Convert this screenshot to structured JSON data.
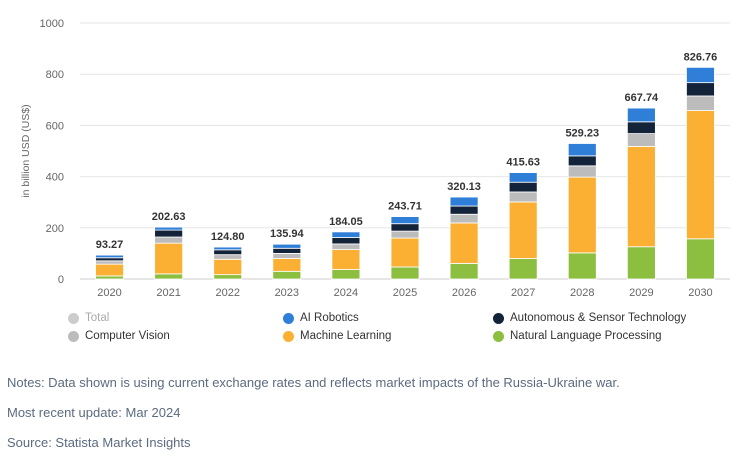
{
  "chart_data": {
    "type": "bar",
    "stacked": true,
    "categories": [
      "2020",
      "2021",
      "2022",
      "2023",
      "2024",
      "2025",
      "2026",
      "2027",
      "2028",
      "2029",
      "2030"
    ],
    "ylabel": "in billion USD (US$)",
    "ylim": [
      0,
      1000
    ],
    "yticks": [
      0,
      200,
      400,
      600,
      800,
      1000
    ],
    "grid": true,
    "totals": [
      93.27,
      202.63,
      124.8,
      135.94,
      184.05,
      243.71,
      320.13,
      415.63,
      529.23,
      667.74,
      826.76
    ],
    "total_labels": [
      "93.27",
      "202.63",
      "124.80",
      "135.94",
      "184.05",
      "243.71",
      "320.13",
      "415.63",
      "529.23",
      "667.74",
      "826.76"
    ],
    "series": [
      {
        "name": "Natural Language Processing",
        "color": "#8cbf3f",
        "values": [
          12,
          20,
          17,
          30,
          37,
          47,
          61,
          80,
          102,
          126,
          157
        ]
      },
      {
        "name": "Machine Learning",
        "color": "#fbb034",
        "values": [
          46,
          120,
          60,
          50,
          78,
          113,
          158,
          221,
          296,
          392,
          501
        ]
      },
      {
        "name": "Computer Vision",
        "color": "#bcbcbc",
        "values": [
          13,
          24,
          18,
          20,
          22,
          27,
          34,
          39,
          44,
          50,
          57
        ]
      },
      {
        "name": "Autonomous & Sensor Technology",
        "color": "#13243a",
        "values": [
          12,
          27,
          19,
          20,
          25,
          29,
          32,
          38,
          39,
          46,
          52
        ]
      },
      {
        "name": "AI Robotics",
        "color": "#2f7ed8",
        "values": [
          10.27,
          11.63,
          10.8,
          15.94,
          22.05,
          27.71,
          35.13,
          37.63,
          48.23,
          53.74,
          59.76
        ]
      }
    ]
  },
  "legend": [
    {
      "name": "Total",
      "color": "#cccccc",
      "dimmed": true
    },
    {
      "name": "AI Robotics",
      "color": "#2f7ed8"
    },
    {
      "name": "Autonomous & Sensor Technology",
      "color": "#13243a"
    },
    {
      "name": "Computer Vision",
      "color": "#bcbcbc"
    },
    {
      "name": "Machine Learning",
      "color": "#fbb034"
    },
    {
      "name": "Natural Language Processing",
      "color": "#8cbf3f"
    }
  ],
  "notes": {
    "note": "Notes: Data shown is using current exchange rates and reflects market impacts of the Russia-Ukraine war.",
    "update": "Most recent update: Mar 2024",
    "source": "Source: Statista Market Insights"
  }
}
